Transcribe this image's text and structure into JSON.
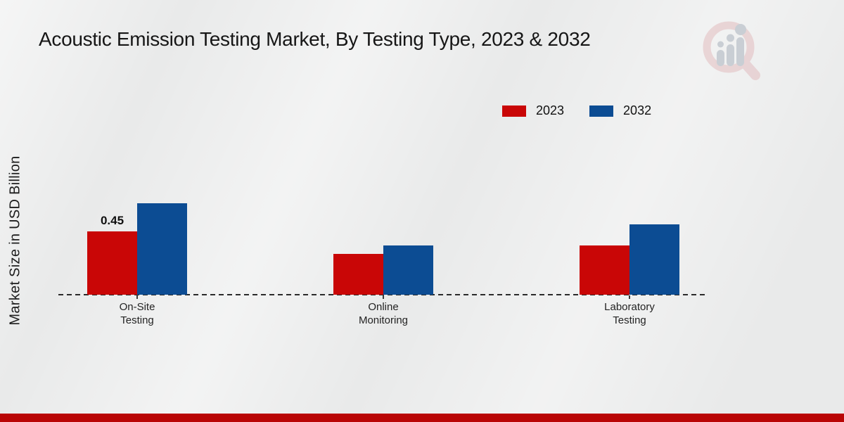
{
  "chart_data": {
    "type": "bar",
    "title": "Acoustic Emission Testing Market, By Testing Type, 2023 & 2032",
    "ylabel": "Market Size in USD Billion",
    "xlabel": "",
    "categories": [
      "On-Site\nTesting",
      "Online\nMonitoring",
      "Laboratory\nTesting"
    ],
    "series": [
      {
        "name": "2023",
        "color": "#c90606",
        "values": [
          0.45,
          0.29,
          0.35
        ]
      },
      {
        "name": "2032",
        "color": "#0c4c93",
        "values": [
          0.65,
          0.35,
          0.5
        ]
      }
    ],
    "annotations": [
      {
        "series_index": 0,
        "group_index": 0,
        "text": "0.45"
      }
    ],
    "ylim": [
      0,
      0.75
    ],
    "grid": false,
    "legend_position": "top-right",
    "x_axis_style": "dashed-line"
  },
  "branding": {
    "logo_name": "market-research-magnifier-logo",
    "footer_bar_color": "#b90505",
    "logo_ring_color": "#e2bdbf",
    "logo_bars_color": "#c9ced4"
  }
}
